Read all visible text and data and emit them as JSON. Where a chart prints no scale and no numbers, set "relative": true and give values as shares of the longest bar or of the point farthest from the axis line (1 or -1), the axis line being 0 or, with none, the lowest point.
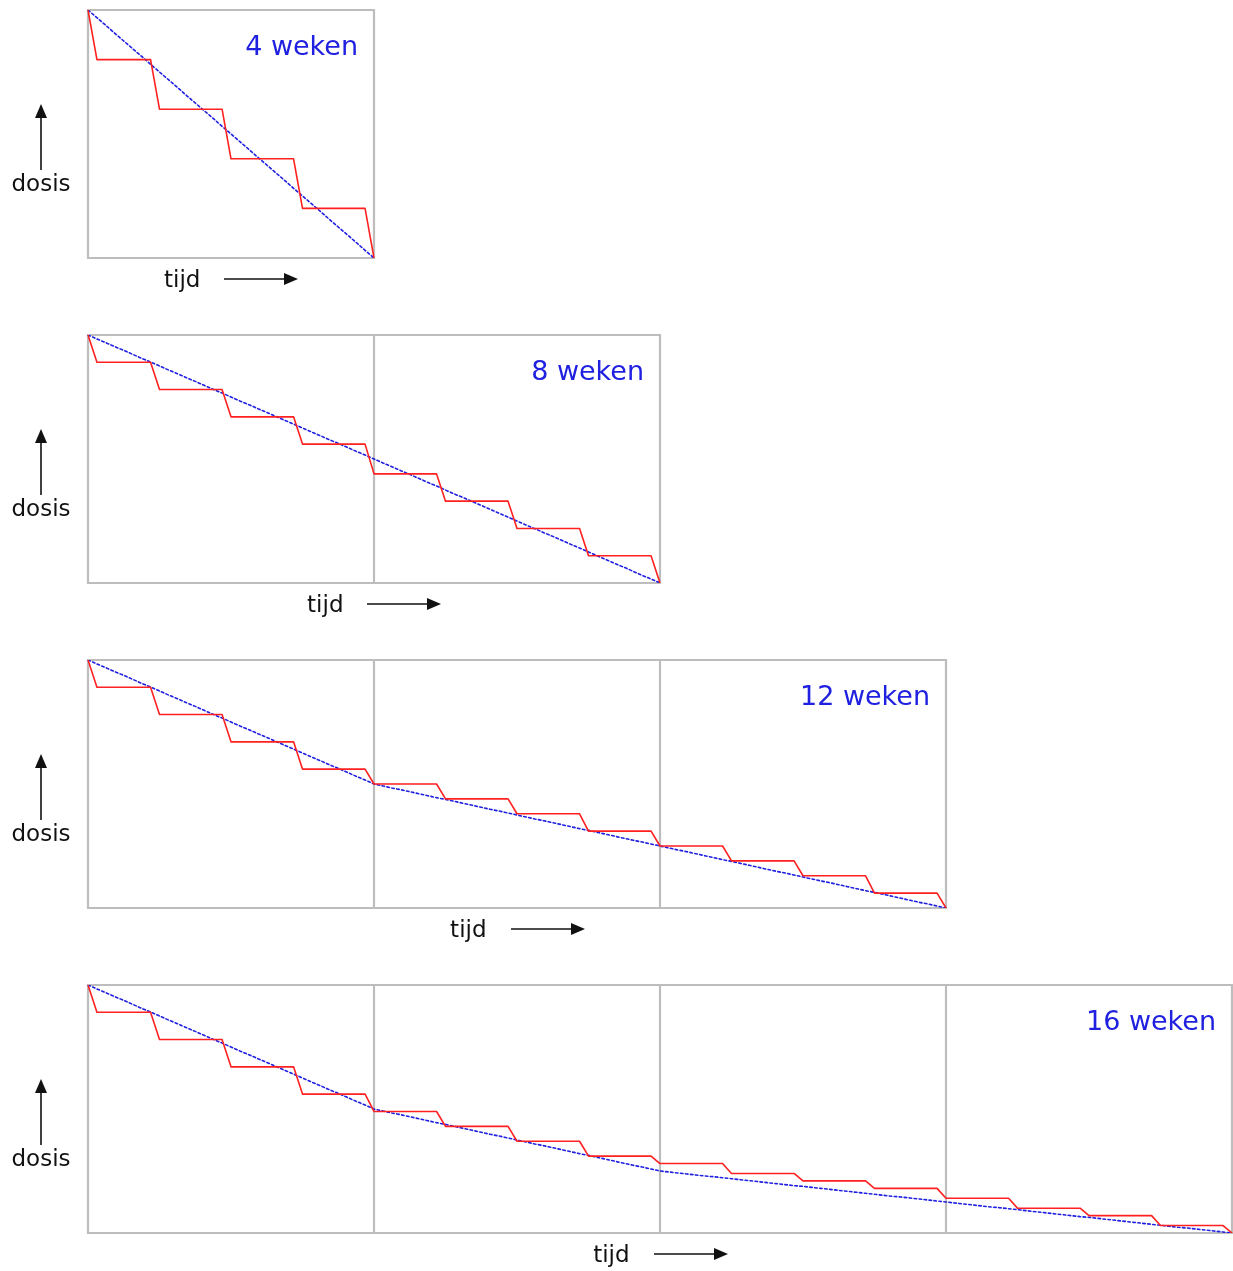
{
  "chart_data": [
    {
      "type": "line",
      "title": "4 weken",
      "xlabel": "tijd",
      "ylabel": "dosis",
      "relative": true,
      "marker": "none",
      "categories": [
        null,
        null,
        null,
        null,
        null,
        null,
        null,
        null,
        null,
        null,
        null,
        null,
        null,
        null,
        null,
        null,
        null,
        null,
        null,
        null,
        null,
        null,
        null,
        null,
        null,
        null,
        null,
        null,
        null,
        null,
        null,
        null,
        null
      ],
      "series": [
        {
          "color": "#ff2020",
          "line_style": "solid",
          "values": [
            1,
            0.8,
            0.8,
            0.8,
            0.8,
            0.8,
            0.8,
            0.8,
            0.6,
            0.6,
            0.6,
            0.6,
            0.6,
            0.6,
            0.6,
            0.6,
            0.4,
            0.4,
            0.4,
            0.4,
            0.4,
            0.4,
            0.4,
            0.4,
            0.2,
            0.2,
            0.2,
            0.2,
            0.2,
            0.2,
            0.2,
            0.2,
            0
          ]
        },
        {
          "color": "#2020e0",
          "line_style": "dotted",
          "values": [
            1,
            0.969,
            0.938,
            0.906,
            0.875,
            0.844,
            0.813,
            0.781,
            0.75,
            0.719,
            0.688,
            0.656,
            0.625,
            0.594,
            0.563,
            0.531,
            0.5,
            0.469,
            0.438,
            0.406,
            0.375,
            0.344,
            0.313,
            0.281,
            0.25,
            0.219,
            0.188,
            0.156,
            0.125,
            0.094,
            0.063,
            0.031,
            0
          ]
        }
      ]
    },
    {
      "type": "line",
      "title": "8 weken",
      "xlabel": "tijd",
      "ylabel": "dosis",
      "relative": true,
      "grid": "x",
      "marker": "none",
      "categories": [
        null,
        null,
        null,
        null,
        null,
        null,
        null,
        null,
        null,
        null,
        null,
        null,
        null,
        null,
        null,
        null,
        null,
        null,
        null,
        null,
        null,
        null,
        null,
        null,
        null,
        null,
        null,
        null,
        null,
        null,
        null,
        null,
        null,
        null,
        null,
        null,
        null,
        null,
        null,
        null,
        null,
        null,
        null,
        null,
        null,
        null,
        null,
        null,
        null,
        null,
        null,
        null,
        null,
        null,
        null,
        null,
        null,
        null,
        null,
        null,
        null,
        null,
        null,
        null,
        null
      ],
      "series": [
        {
          "color": "#ff2020",
          "line_style": "solid",
          "values": [
            1,
            0.89,
            0.89,
            0.89,
            0.89,
            0.89,
            0.89,
            0.89,
            0.78,
            0.78,
            0.78,
            0.78,
            0.78,
            0.78,
            0.78,
            0.78,
            0.67,
            0.67,
            0.67,
            0.67,
            0.67,
            0.67,
            0.67,
            0.67,
            0.56,
            0.56,
            0.56,
            0.56,
            0.56,
            0.56,
            0.56,
            0.56,
            0.44,
            0.44,
            0.44,
            0.44,
            0.44,
            0.44,
            0.44,
            0.44,
            0.33,
            0.33,
            0.33,
            0.33,
            0.33,
            0.33,
            0.33,
            0.33,
            0.22,
            0.22,
            0.22,
            0.22,
            0.22,
            0.22,
            0.22,
            0.22,
            0.11,
            0.11,
            0.11,
            0.11,
            0.11,
            0.11,
            0.11,
            0.11,
            0
          ]
        },
        {
          "color": "#2020e0",
          "line_style": "dotted",
          "values": [
            1,
            0.984,
            0.969,
            0.953,
            0.938,
            0.922,
            0.906,
            0.891,
            0.875,
            0.859,
            0.844,
            0.828,
            0.813,
            0.797,
            0.781,
            0.766,
            0.75,
            0.734,
            0.719,
            0.703,
            0.688,
            0.672,
            0.656,
            0.641,
            0.625,
            0.609,
            0.594,
            0.578,
            0.563,
            0.547,
            0.531,
            0.516,
            0.5,
            0.484,
            0.469,
            0.453,
            0.438,
            0.422,
            0.406,
            0.391,
            0.375,
            0.359,
            0.344,
            0.328,
            0.313,
            0.297,
            0.281,
            0.266,
            0.25,
            0.234,
            0.219,
            0.203,
            0.188,
            0.172,
            0.156,
            0.141,
            0.125,
            0.109,
            0.094,
            0.078,
            0.063,
            0.047,
            0.031,
            0.016,
            0
          ]
        }
      ]
    },
    {
      "type": "line",
      "title": "12 weken",
      "xlabel": "tijd",
      "ylabel": "dosis",
      "relative": true,
      "grid": "x",
      "marker": "none",
      "categories": [
        null,
        null,
        null,
        null,
        null,
        null,
        null,
        null,
        null,
        null,
        null,
        null,
        null,
        null,
        null,
        null,
        null,
        null,
        null,
        null,
        null,
        null,
        null,
        null,
        null,
        null,
        null,
        null,
        null,
        null,
        null,
        null,
        null,
        null,
        null,
        null,
        null,
        null,
        null,
        null,
        null,
        null,
        null,
        null,
        null,
        null,
        null,
        null,
        null,
        null,
        null,
        null,
        null,
        null,
        null,
        null,
        null,
        null,
        null,
        null,
        null,
        null,
        null,
        null,
        null,
        null,
        null,
        null,
        null,
        null,
        null,
        null,
        null,
        null,
        null,
        null,
        null,
        null,
        null,
        null,
        null,
        null,
        null,
        null,
        null,
        null,
        null,
        null,
        null,
        null,
        null,
        null,
        null,
        null,
        null,
        null,
        null
      ],
      "series": [
        {
          "color": "#ff2020",
          "line_style": "solid",
          "values": [
            1,
            0.89,
            0.89,
            0.89,
            0.89,
            0.89,
            0.89,
            0.89,
            0.78,
            0.78,
            0.78,
            0.78,
            0.78,
            0.78,
            0.78,
            0.78,
            0.67,
            0.67,
            0.67,
            0.67,
            0.67,
            0.67,
            0.67,
            0.67,
            0.56,
            0.56,
            0.56,
            0.56,
            0.56,
            0.56,
            0.56,
            0.56,
            0.5,
            0.5,
            0.5,
            0.5,
            0.5,
            0.5,
            0.5,
            0.5,
            0.44,
            0.44,
            0.44,
            0.44,
            0.44,
            0.44,
            0.44,
            0.44,
            0.38,
            0.38,
            0.38,
            0.38,
            0.38,
            0.38,
            0.38,
            0.38,
            0.31,
            0.31,
            0.31,
            0.31,
            0.31,
            0.31,
            0.31,
            0.31,
            0.25,
            0.25,
            0.25,
            0.25,
            0.25,
            0.25,
            0.25,
            0.25,
            0.19,
            0.19,
            0.19,
            0.19,
            0.19,
            0.19,
            0.19,
            0.19,
            0.13,
            0.13,
            0.13,
            0.13,
            0.13,
            0.13,
            0.13,
            0.13,
            0.06,
            0.06,
            0.06,
            0.06,
            0.06,
            0.06,
            0.06,
            0.06,
            0
          ]
        },
        {
          "color": "#2020e0",
          "line_style": "dotted",
          "values": [
            1,
            0.984,
            0.969,
            0.953,
            0.938,
            0.922,
            0.906,
            0.891,
            0.875,
            0.859,
            0.844,
            0.828,
            0.813,
            0.797,
            0.781,
            0.766,
            0.75,
            0.734,
            0.719,
            0.703,
            0.688,
            0.672,
            0.656,
            0.641,
            0.625,
            0.609,
            0.594,
            0.578,
            0.563,
            0.547,
            0.531,
            0.516,
            0.5,
            0.492,
            0.484,
            0.477,
            0.469,
            0.461,
            0.453,
            0.445,
            0.438,
            0.43,
            0.422,
            0.414,
            0.406,
            0.398,
            0.391,
            0.383,
            0.375,
            0.367,
            0.359,
            0.352,
            0.344,
            0.336,
            0.328,
            0.32,
            0.313,
            0.305,
            0.297,
            0.289,
            0.281,
            0.273,
            0.266,
            0.258,
            0.25,
            0.242,
            0.234,
            0.227,
            0.219,
            0.211,
            0.203,
            0.195,
            0.188,
            0.18,
            0.172,
            0.164,
            0.156,
            0.148,
            0.141,
            0.133,
            0.125,
            0.117,
            0.109,
            0.102,
            0.094,
            0.086,
            0.078,
            0.07,
            0.063,
            0.055,
            0.047,
            0.039,
            0.031,
            0.023,
            0.016,
            0.008,
            0
          ]
        }
      ]
    },
    {
      "type": "line",
      "title": "16 weken",
      "xlabel": "tijd",
      "ylabel": "dosis",
      "relative": true,
      "grid": "x",
      "marker": "none",
      "categories": [
        null,
        null,
        null,
        null,
        null,
        null,
        null,
        null,
        null,
        null,
        null,
        null,
        null,
        null,
        null,
        null,
        null,
        null,
        null,
        null,
        null,
        null,
        null,
        null,
        null,
        null,
        null,
        null,
        null,
        null,
        null,
        null,
        null,
        null,
        null,
        null,
        null,
        null,
        null,
        null,
        null,
        null,
        null,
        null,
        null,
        null,
        null,
        null,
        null,
        null,
        null,
        null,
        null,
        null,
        null,
        null,
        null,
        null,
        null,
        null,
        null,
        null,
        null,
        null,
        null,
        null,
        null,
        null,
        null,
        null,
        null,
        null,
        null,
        null,
        null,
        null,
        null,
        null,
        null,
        null,
        null,
        null,
        null,
        null,
        null,
        null,
        null,
        null,
        null,
        null,
        null,
        null,
        null,
        null,
        null,
        null,
        null,
        null,
        null,
        null,
        null,
        null,
        null,
        null,
        null,
        null,
        null,
        null,
        null,
        null,
        null,
        null,
        null,
        null,
        null,
        null,
        null,
        null,
        null,
        null,
        null,
        null,
        null,
        null,
        null,
        null,
        null,
        null,
        null
      ],
      "series": [
        {
          "color": "#ff2020",
          "line_style": "solid",
          "values": [
            1,
            0.89,
            0.89,
            0.89,
            0.89,
            0.89,
            0.89,
            0.89,
            0.78,
            0.78,
            0.78,
            0.78,
            0.78,
            0.78,
            0.78,
            0.78,
            0.67,
            0.67,
            0.67,
            0.67,
            0.67,
            0.67,
            0.67,
            0.67,
            0.56,
            0.56,
            0.56,
            0.56,
            0.56,
            0.56,
            0.56,
            0.56,
            0.49,
            0.49,
            0.49,
            0.49,
            0.49,
            0.49,
            0.49,
            0.49,
            0.43,
            0.43,
            0.43,
            0.43,
            0.43,
            0.43,
            0.43,
            0.43,
            0.37,
            0.37,
            0.37,
            0.37,
            0.37,
            0.37,
            0.37,
            0.37,
            0.31,
            0.31,
            0.31,
            0.31,
            0.31,
            0.31,
            0.31,
            0.31,
            0.28,
            0.28,
            0.28,
            0.28,
            0.28,
            0.28,
            0.28,
            0.28,
            0.24,
            0.24,
            0.24,
            0.24,
            0.24,
            0.24,
            0.24,
            0.24,
            0.21,
            0.21,
            0.21,
            0.21,
            0.21,
            0.21,
            0.21,
            0.21,
            0.18,
            0.18,
            0.18,
            0.18,
            0.18,
            0.18,
            0.18,
            0.18,
            0.14,
            0.14,
            0.14,
            0.14,
            0.14,
            0.14,
            0.14,
            0.14,
            0.1,
            0.1,
            0.1,
            0.1,
            0.1,
            0.1,
            0.1,
            0.1,
            0.07,
            0.07,
            0.07,
            0.07,
            0.07,
            0.07,
            0.07,
            0.07,
            0.03,
            0.03,
            0.03,
            0.03,
            0.03,
            0.03,
            0.03,
            0.03,
            0
          ]
        },
        {
          "color": "#2020e0",
          "line_style": "dotted",
          "values": [
            1,
            0.984,
            0.969,
            0.953,
            0.938,
            0.922,
            0.906,
            0.891,
            0.875,
            0.859,
            0.844,
            0.828,
            0.813,
            0.797,
            0.781,
            0.766,
            0.75,
            0.734,
            0.719,
            0.703,
            0.688,
            0.672,
            0.656,
            0.641,
            0.625,
            0.609,
            0.594,
            0.578,
            0.563,
            0.547,
            0.531,
            0.516,
            0.5,
            0.492,
            0.484,
            0.477,
            0.469,
            0.461,
            0.453,
            0.445,
            0.438,
            0.43,
            0.422,
            0.414,
            0.406,
            0.398,
            0.391,
            0.383,
            0.375,
            0.367,
            0.359,
            0.352,
            0.344,
            0.336,
            0.328,
            0.32,
            0.313,
            0.305,
            0.297,
            0.289,
            0.281,
            0.273,
            0.266,
            0.258,
            0.25,
            0.246,
            0.242,
            0.238,
            0.234,
            0.23,
            0.227,
            0.223,
            0.219,
            0.215,
            0.211,
            0.207,
            0.203,
            0.199,
            0.195,
            0.191,
            0.188,
            0.184,
            0.18,
            0.176,
            0.172,
            0.168,
            0.164,
            0.16,
            0.156,
            0.152,
            0.148,
            0.145,
            0.141,
            0.137,
            0.133,
            0.129,
            0.125,
            0.121,
            0.117,
            0.113,
            0.109,
            0.105,
            0.102,
            0.098,
            0.094,
            0.09,
            0.086,
            0.082,
            0.078,
            0.074,
            0.07,
            0.066,
            0.063,
            0.059,
            0.055,
            0.051,
            0.047,
            0.043,
            0.039,
            0.035,
            0.031,
            0.027,
            0.023,
            0.02,
            0.016,
            0.012,
            0.008,
            0.004,
            0
          ]
        }
      ]
    }
  ]
}
